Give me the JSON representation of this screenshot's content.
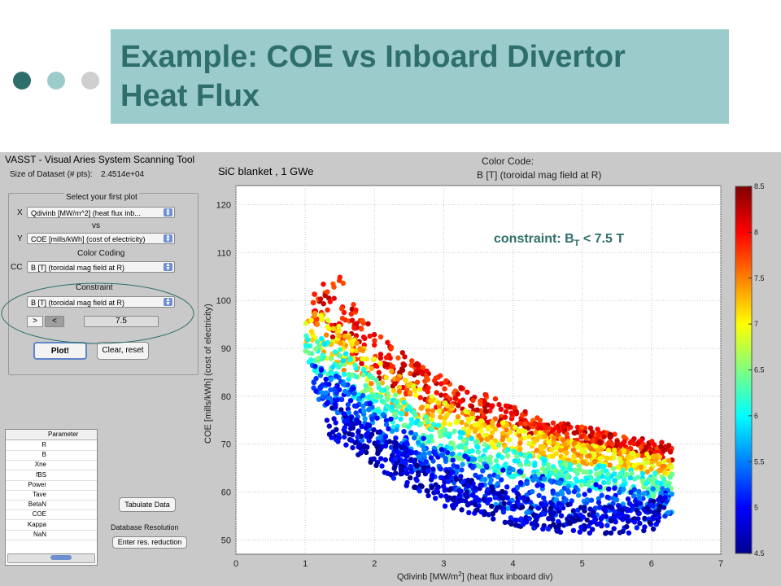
{
  "slide": {
    "title_line1": "Example: COE vs Inboard Divertor",
    "title_line2": "Heat Flux",
    "dots": [
      "#2e6f6b",
      "#9ccbcc",
      "#cfcfcf"
    ]
  },
  "app": {
    "window_title": "VASST - Visual Aries System Scanning Tool",
    "dataset_label": "Size of Dataset (# pts):",
    "dataset_value": "2.4514e+04",
    "select_label": "Select your first plot",
    "x_label": "X",
    "x_value": "Qdivinb [MW/m^2] (heat flux inb...",
    "vs_label": "vs",
    "y_label": "Y",
    "y_value": "COE [mills/kWh] (cost of electricity)",
    "color_coding_label": "Color Coding",
    "cc_label": "CC",
    "cc_value": "B [T] (toroidal mag field at R)",
    "constraint_label": "Constraint",
    "constraint_value": "B [T] (toroidal mag field at R)",
    "gt_label": ">",
    "lt_label": "<",
    "constraint_number": "7.5",
    "plot_button": "Plot!",
    "clear_button": "Clear, reset",
    "table_header": "Parameter",
    "table_rows": [
      "R",
      "B",
      "Xne",
      "fBS",
      "Power",
      "Tave",
      "BetaN",
      "COE",
      "Kappa",
      "NaN"
    ],
    "tabulate_button": "Tabulate Data",
    "db_resolution_label": "Database Resolution",
    "enter_res_button": "Enter res. reduction"
  },
  "chart_data": {
    "type": "scatter",
    "subtitle": "SiC blanket , 1 GWe",
    "color_code_label": "Color Code:",
    "color_code_field": "B [T] (toroidal mag field at R)",
    "annotation_prefix": "constraint: B",
    "annotation_sub": "T",
    "annotation_suffix": " < 7.5 T",
    "xlabel_pre": "Qdivinb [MW/m",
    "xlabel_sup": "2",
    "xlabel_post": "] (heat flux inboard div)",
    "ylabel": "COE [mills/kWh] (cost of electricity)",
    "xlim": [
      0,
      7
    ],
    "ylim": [
      47,
      124
    ],
    "xticks": [
      0,
      1,
      2,
      3,
      4,
      5,
      6,
      7
    ],
    "yticks": [
      50,
      60,
      70,
      80,
      90,
      100,
      110,
      120
    ],
    "colorbar": {
      "min": 4.5,
      "max": 8.5,
      "ticks": [
        4.5,
        5,
        5.5,
        6,
        6.5,
        7,
        7.5,
        8,
        8.5
      ]
    },
    "grid": true,
    "bands": [
      {
        "B": 8.0,
        "x": [
          1.1,
          1.3,
          1.5,
          1.7,
          2.0,
          2.5,
          3.0,
          3.5,
          4.0,
          4.5,
          5.0,
          5.5,
          6.0,
          6.3
        ],
        "ylo": [
          96,
          93,
          91,
          88,
          84,
          80,
          77,
          75,
          73,
          71,
          70,
          68,
          67,
          66
        ],
        "yhi": [
          103,
          104,
          106,
          100,
          94,
          88,
          84,
          81,
          78,
          75,
          74,
          72,
          71,
          70
        ]
      },
      {
        "B": 7.2,
        "x": [
          1.0,
          1.3,
          1.6,
          2.0,
          2.5,
          3.0,
          3.5,
          4.0,
          4.5,
          5.0,
          5.5,
          6.0,
          6.3
        ],
        "ylo": [
          90,
          88,
          85,
          80,
          75,
          72,
          70,
          68,
          67,
          66,
          65,
          64,
          63
        ],
        "yhi": [
          98,
          97,
          94,
          88,
          83,
          79,
          76,
          74,
          72,
          70,
          69,
          68,
          67
        ]
      },
      {
        "B": 6.2,
        "x": [
          1.0,
          1.3,
          1.6,
          2.0,
          2.5,
          3.0,
          3.5,
          4.0,
          4.5,
          5.0,
          5.5,
          6.0,
          6.3
        ],
        "ylo": [
          86,
          84,
          80,
          76,
          71,
          67,
          65,
          63,
          62,
          61,
          60,
          59,
          59
        ],
        "yhi": [
          93,
          92,
          89,
          84,
          78,
          74,
          71,
          69,
          67,
          66,
          65,
          64,
          64
        ]
      },
      {
        "B": 5.3,
        "x": [
          1.1,
          1.4,
          1.7,
          2.0,
          2.5,
          3.0,
          3.5,
          4.0,
          4.5,
          5.0,
          5.5,
          6.0,
          6.3
        ],
        "ylo": [
          80,
          77,
          72,
          68,
          64,
          61,
          58,
          56,
          55,
          54,
          54,
          54,
          55
        ],
        "yhi": [
          87,
          85,
          82,
          78,
          73,
          69,
          67,
          65,
          63,
          62,
          61,
          61,
          61
        ]
      },
      {
        "B": 4.8,
        "x": [
          1.3,
          1.6,
          2.0,
          2.5,
          3.0,
          3.5,
          4.0,
          4.5,
          5.0,
          5.5,
          6.0,
          6.2
        ],
        "ylo": [
          72,
          69,
          65,
          61,
          57,
          55,
          53,
          52,
          51,
          51,
          52,
          54
        ],
        "yhi": [
          80,
          77,
          74,
          69,
          65,
          62,
          60,
          58,
          57,
          57,
          58,
          60
        ]
      }
    ]
  }
}
